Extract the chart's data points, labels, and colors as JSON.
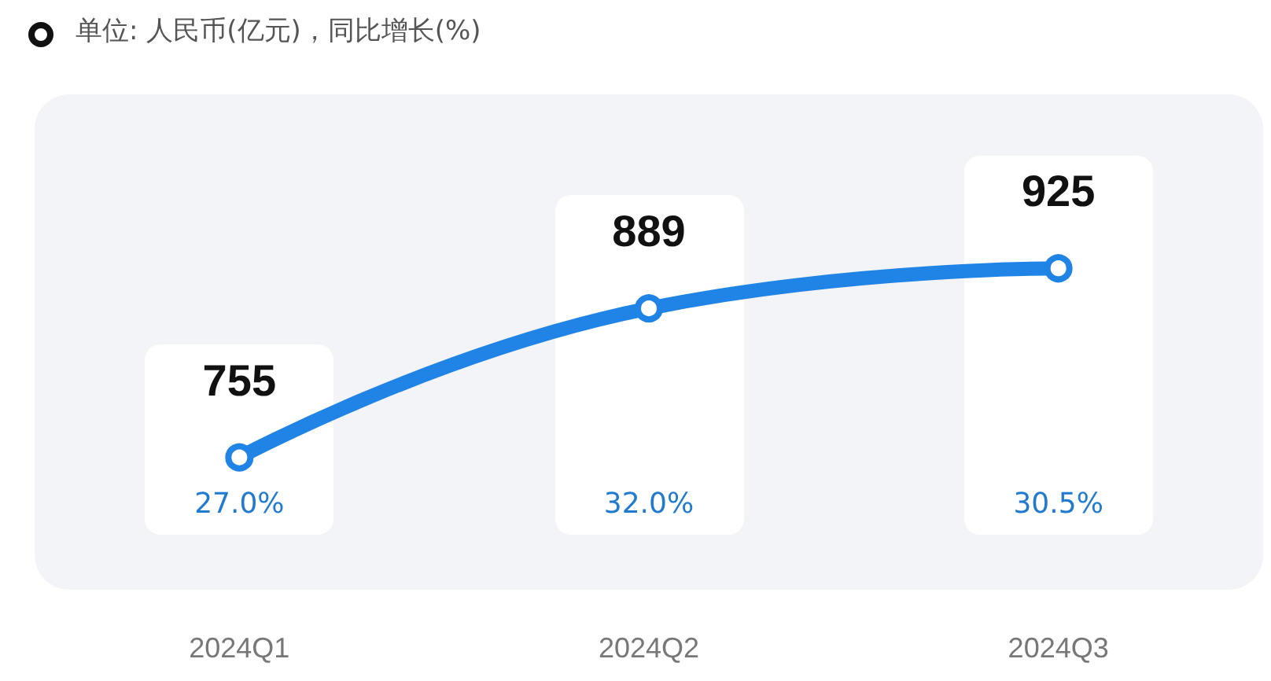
{
  "chart_data": {
    "type": "line",
    "title": "单位: 人民币(亿元)，同比增长(%)",
    "categories": [
      "2024Q1",
      "2024Q2",
      "2024Q3"
    ],
    "series": [
      {
        "color": "#1f84e6",
        "values": [
          755,
          889,
          925
        ]
      }
    ],
    "data_labels": true,
    "marker": "circle",
    "line_style": "solid",
    "tick_labels": "x",
    "annotations": [
      "27.0%",
      "32.0%",
      "30.5%"
    ]
  }
}
